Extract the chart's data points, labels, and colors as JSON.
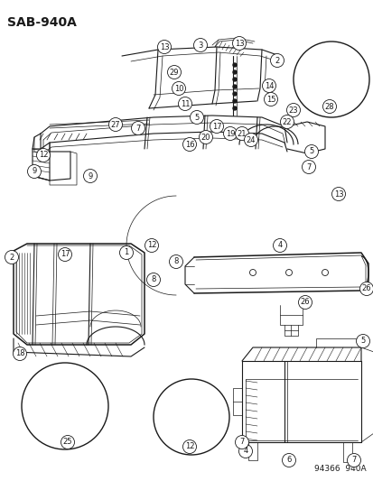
{
  "title": "SAB-940A",
  "footer": "94366  940A",
  "background_color": "#ffffff",
  "line_color": "#1a1a1a",
  "fig_width": 4.14,
  "fig_height": 5.33,
  "dpi": 100,
  "title_fontsize": 10,
  "footer_fontsize": 6.5,
  "number_fontsize": 6.0,
  "label_circle_r": 0.013,
  "lw_thin": 0.5,
  "lw_med": 0.8,
  "lw_thick": 1.1
}
